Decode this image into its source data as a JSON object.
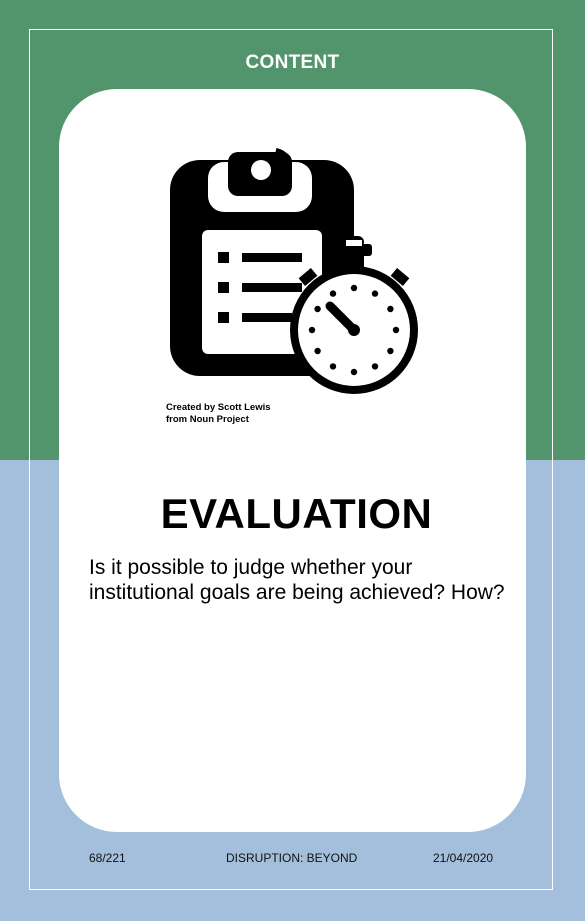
{
  "card": {
    "category": "CONTENT",
    "icon": "clipboard-stopwatch-icon",
    "credit_line1": "Created by Scott Lewis",
    "credit_line2": "from Noun Project",
    "title": "EVALUATION",
    "question": "Is it possible to judge whether your institutional goals are being achieved? How?"
  },
  "footer": {
    "page": "68/221",
    "deck": "DISRUPTION: BEYOND",
    "date": "21/04/2020"
  },
  "colors": {
    "top_band": "#52956d",
    "bottom_band": "#a3bfdb",
    "card": "#ffffff",
    "frame": "#ffffff"
  }
}
